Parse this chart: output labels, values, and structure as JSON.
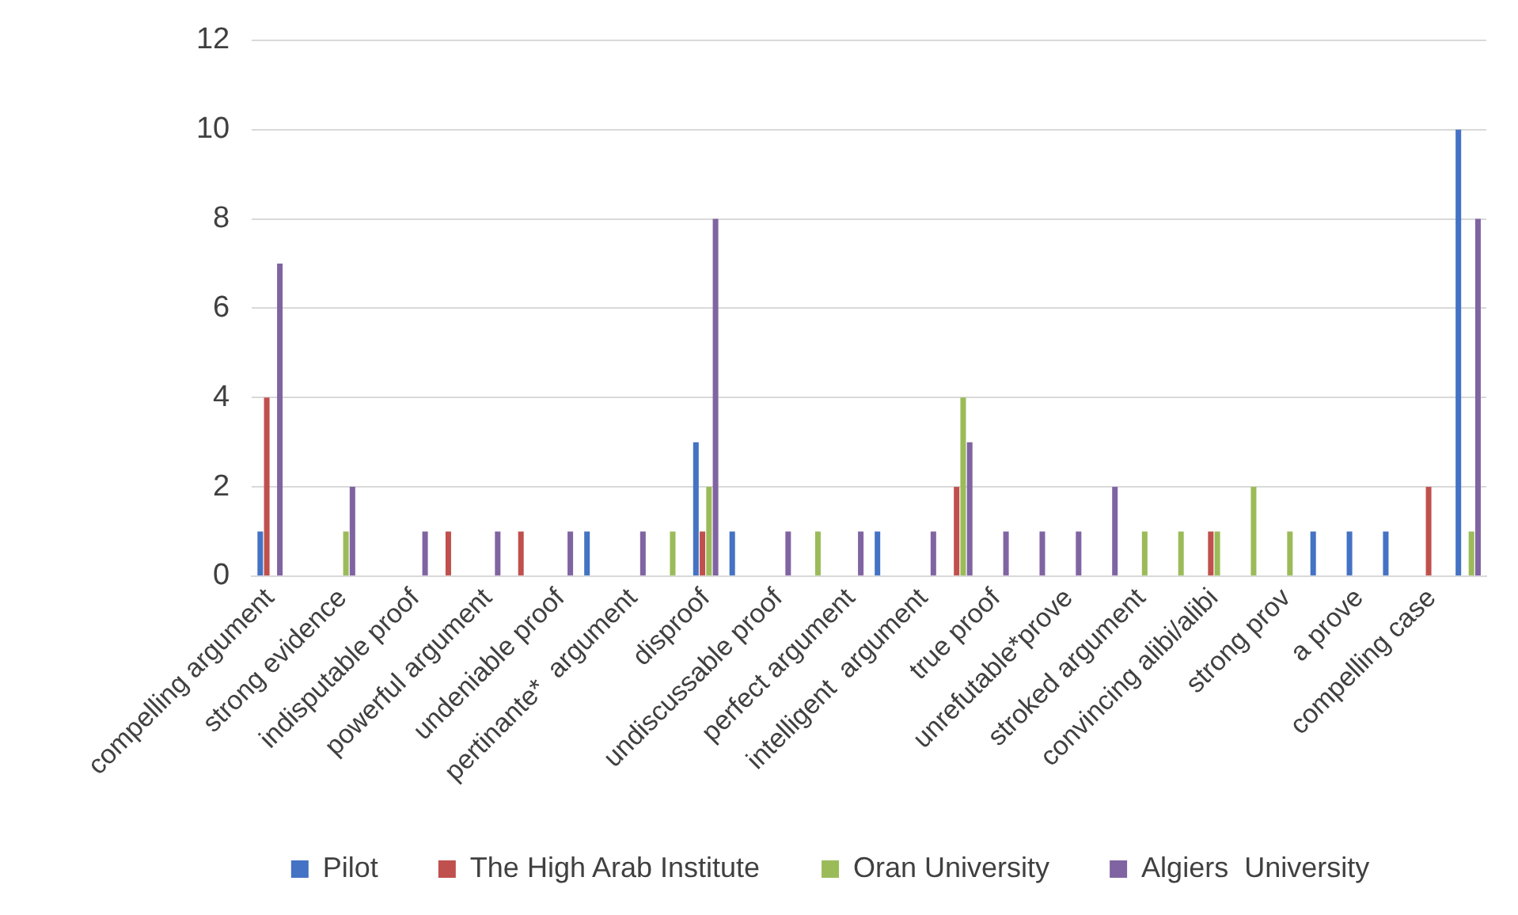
{
  "chart_data": {
    "type": "bar",
    "categories": [
      "compelling argument",
      null,
      "strong evidence",
      null,
      "indisputable proof",
      null,
      "powerful argument",
      null,
      "undeniable proof",
      null,
      "pertinante*  argument",
      null,
      "disproof",
      null,
      "undiscussable proof",
      null,
      "perfect argument",
      null,
      "intelligent  argument",
      null,
      "true proof",
      null,
      "unrefutable*prove",
      null,
      "stroked argument",
      null,
      "convincing alibi/alibi",
      null,
      "strong prov",
      null,
      "a prove",
      null,
      "compelling case",
      null
    ],
    "series": [
      {
        "name": "Pilot",
        "color": "#4472c4",
        "values": [
          1,
          0,
          0,
          0,
          0,
          0,
          0,
          0,
          0,
          1,
          0,
          0,
          3,
          1,
          0,
          0,
          0,
          1,
          0,
          0,
          0,
          0,
          0,
          0,
          0,
          0,
          0,
          0,
          0,
          1,
          1,
          1,
          0,
          10
        ]
      },
      {
        "name": "The High Arab Institute",
        "color": "#c0504d",
        "values": [
          4,
          0,
          0,
          0,
          0,
          1,
          0,
          1,
          0,
          0,
          0,
          0,
          1,
          0,
          0,
          0,
          0,
          0,
          0,
          2,
          0,
          0,
          0,
          0,
          0,
          0,
          1,
          0,
          0,
          0,
          0,
          0,
          2,
          0
        ]
      },
      {
        "name": "Oran University",
        "color": "#9bbb59",
        "values": [
          0,
          0,
          1,
          0,
          0,
          0,
          0,
          0,
          0,
          0,
          0,
          1,
          2,
          0,
          0,
          1,
          0,
          0,
          0,
          4,
          0,
          0,
          0,
          0,
          1,
          1,
          1,
          2,
          1,
          0,
          0,
          0,
          0,
          1
        ]
      },
      {
        "name": "Algiers  University",
        "color": "#8064a2",
        "values": [
          7,
          0,
          2,
          0,
          1,
          0,
          1,
          0,
          1,
          0,
          1,
          0,
          8,
          0,
          1,
          0,
          1,
          0,
          1,
          3,
          1,
          1,
          1,
          2,
          0,
          0,
          0,
          0,
          0,
          0,
          0,
          0,
          0,
          8
        ]
      }
    ],
    "ylim": [
      0,
      12
    ],
    "yticks": [
      0,
      2,
      4,
      6,
      8,
      10,
      12
    ],
    "grid": "y",
    "legend": "bottom"
  }
}
